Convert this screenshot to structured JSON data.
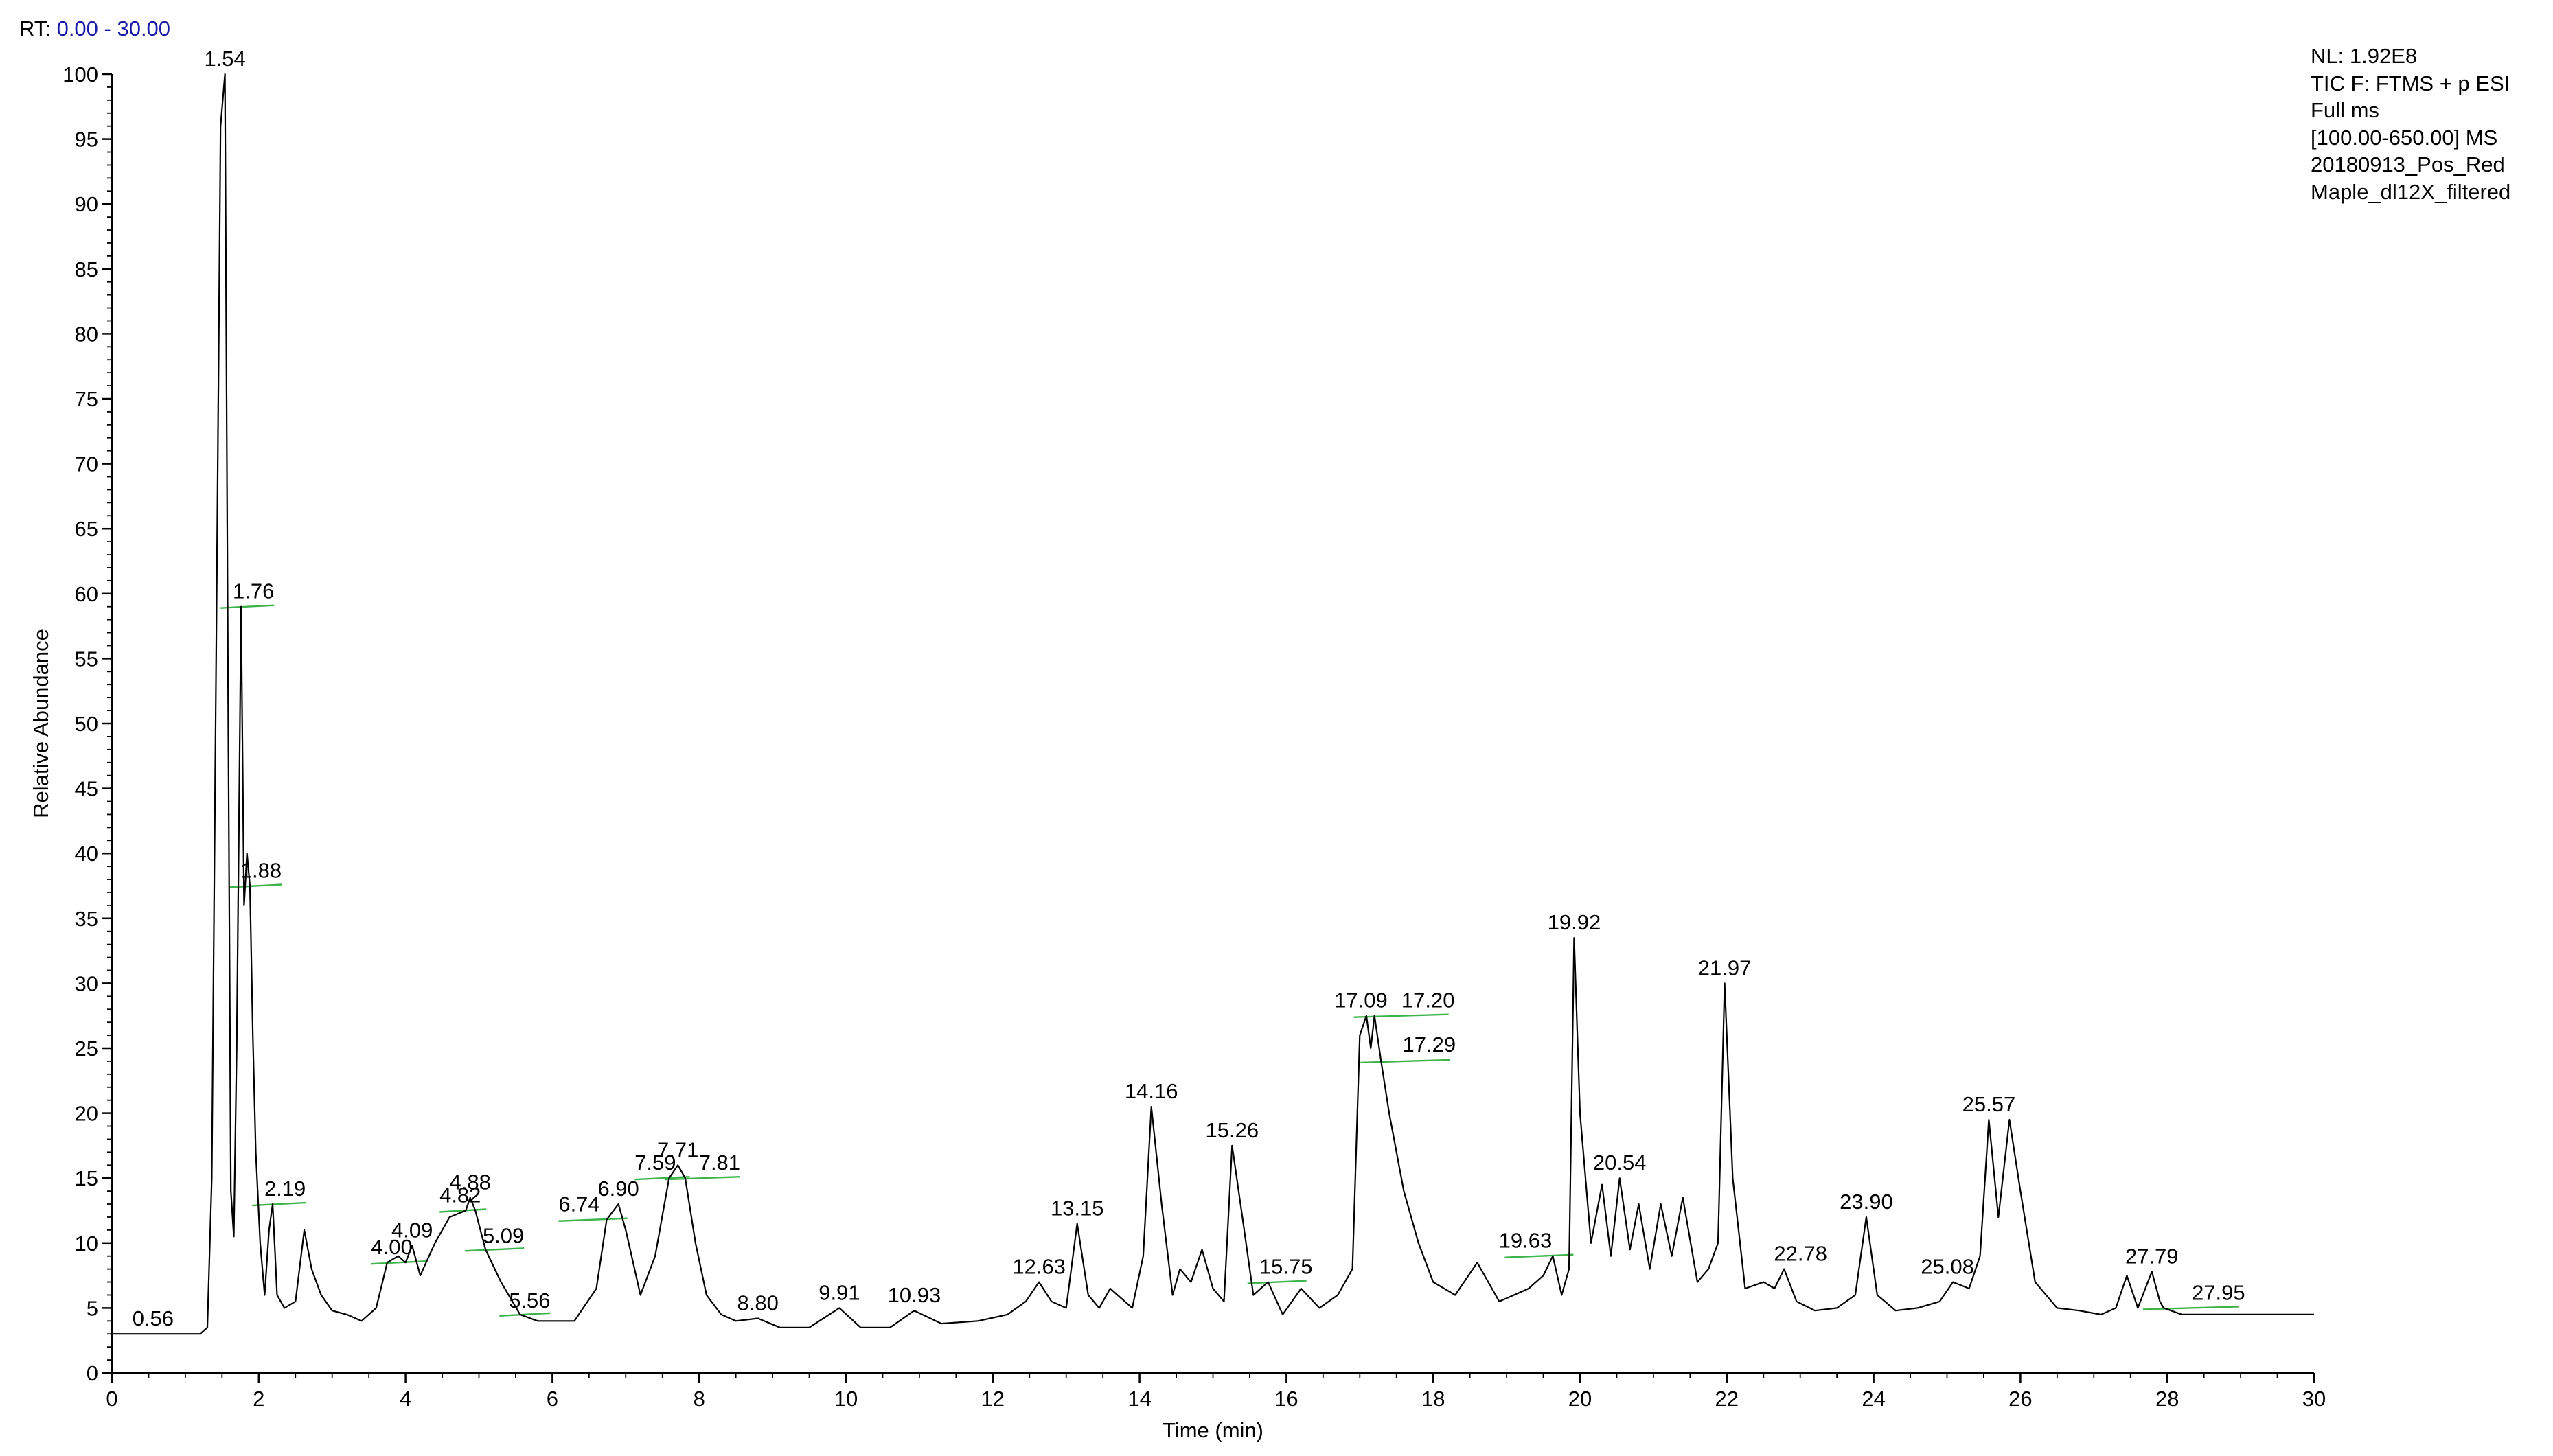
{
  "header": {
    "rt_label": "RT:",
    "rt_range": "0.00 - 30.00"
  },
  "info": {
    "lines": [
      "NL: 1.92E8",
      "TIC F: FTMS + p ESI",
      "Full ms",
      "[100.00-650.00]  MS",
      "20180913_Pos_Red",
      "Maple_dl12X_filtered"
    ]
  },
  "colors": {
    "trace": "#000000",
    "baseline_marker": "#3cb44b",
    "rt_range": "#1a1aa6"
  },
  "chart_data": {
    "type": "line",
    "title": "",
    "xlabel": "Time (min)",
    "ylabel": "Relative Abundance",
    "xlim": [
      0,
      30
    ],
    "ylim": [
      0,
      100
    ],
    "x_ticks": [
      0,
      2,
      4,
      6,
      8,
      10,
      12,
      14,
      16,
      18,
      20,
      22,
      24,
      26,
      28,
      30
    ],
    "y_ticks": [
      0,
      5,
      10,
      15,
      20,
      25,
      30,
      35,
      40,
      45,
      50,
      55,
      60,
      65,
      70,
      75,
      80,
      85,
      90,
      95,
      100
    ],
    "grid": false,
    "series": [
      {
        "x": [
          0,
          0.3,
          0.56,
          0.9,
          1.2,
          1.3,
          1.36,
          1.42,
          1.48,
          1.54,
          1.58,
          1.62,
          1.66,
          1.7,
          1.76,
          1.8,
          1.84,
          1.88,
          1.92,
          1.96,
          2.02,
          2.08,
          2.14,
          2.19,
          2.25,
          2.35,
          2.5,
          2.62,
          2.72,
          2.85,
          3.0,
          3.2,
          3.4,
          3.6,
          3.75,
          3.9,
          4.0,
          4.09,
          4.2,
          4.4,
          4.6,
          4.82,
          4.88,
          4.95,
          5.09,
          5.3,
          5.56,
          5.8,
          6.0,
          6.3,
          6.6,
          6.74,
          6.9,
          7.0,
          7.2,
          7.4,
          7.59,
          7.71,
          7.81,
          7.95,
          8.1,
          8.3,
          8.5,
          8.8,
          9.1,
          9.5,
          9.91,
          10.2,
          10.6,
          10.93,
          11.3,
          11.8,
          12.2,
          12.45,
          12.63,
          12.8,
          13.0,
          13.15,
          13.3,
          13.45,
          13.6,
          13.9,
          14.05,
          14.16,
          14.3,
          14.45,
          14.55,
          14.7,
          14.85,
          15.0,
          15.15,
          15.26,
          15.4,
          15.55,
          15.75,
          15.95,
          16.2,
          16.45,
          16.7,
          16.9,
          17.0,
          17.09,
          17.15,
          17.2,
          17.29,
          17.4,
          17.6,
          17.8,
          18.0,
          18.3,
          18.6,
          18.9,
          19.1,
          19.3,
          19.5,
          19.63,
          19.75,
          19.85,
          19.92,
          20.0,
          20.15,
          20.3,
          20.42,
          20.54,
          20.68,
          20.8,
          20.95,
          21.1,
          21.25,
          21.4,
          21.6,
          21.75,
          21.88,
          21.97,
          22.08,
          22.25,
          22.5,
          22.65,
          22.78,
          22.95,
          23.2,
          23.5,
          23.75,
          23.9,
          24.05,
          24.3,
          24.6,
          24.9,
          25.08,
          25.3,
          25.45,
          25.57,
          25.7,
          25.85,
          26.0,
          26.2,
          26.5,
          26.8,
          27.1,
          27.3,
          27.45,
          27.6,
          27.79,
          27.9,
          27.95,
          28.2,
          28.6,
          29.0,
          29.5,
          30.0
        ],
        "y": [
          3.0,
          3.0,
          3.0,
          3.0,
          3.0,
          3.5,
          15,
          55,
          96,
          100,
          55,
          14,
          10.5,
          25,
          59,
          36,
          40,
          37.5,
          26,
          17,
          10,
          6,
          11,
          13,
          6,
          5,
          5.5,
          11,
          8,
          6,
          4.8,
          4.5,
          4.0,
          5.0,
          8.5,
          9.0,
          8.5,
          9.8,
          7.5,
          10,
          12,
          12.5,
          13.5,
          12.5,
          9.5,
          7.0,
          4.5,
          4.0,
          4.0,
          4.0,
          6.5,
          11.8,
          13,
          11,
          6.0,
          9.0,
          15,
          16,
          15,
          10,
          6.0,
          4.5,
          4.0,
          4.2,
          3.5,
          3.5,
          5.0,
          3.5,
          3.5,
          4.8,
          3.8,
          4.0,
          4.5,
          5.5,
          7.0,
          5.5,
          5.0,
          11.5,
          6.0,
          5.0,
          6.5,
          5.0,
          9.0,
          20.5,
          13,
          6.0,
          8.0,
          7.0,
          9.5,
          6.5,
          5.5,
          17.5,
          12,
          6.0,
          7.0,
          4.5,
          6.5,
          5.0,
          6.0,
          8.0,
          26,
          27.5,
          25,
          27.5,
          24,
          20,
          14,
          10,
          7.0,
          6.0,
          8.5,
          5.5,
          6.0,
          6.5,
          7.5,
          9.0,
          6.0,
          8.0,
          33.5,
          20,
          10,
          14.5,
          9.0,
          15,
          9.5,
          13,
          8.0,
          13,
          9.0,
          13.5,
          7.0,
          8.0,
          10,
          30,
          15,
          6.5,
          7.0,
          6.5,
          8.0,
          5.5,
          4.8,
          5.0,
          6.0,
          12,
          6.0,
          4.8,
          5.0,
          5.5,
          7.0,
          6.5,
          9.0,
          19.5,
          12,
          19.5,
          14,
          7.0,
          5.0,
          4.8,
          4.5,
          5.0,
          7.5,
          5.0,
          7.8,
          5.5,
          5.0,
          4.5,
          4.5,
          4.5,
          4.5,
          4.5
        ]
      }
    ],
    "peak_labels": [
      {
        "x": 0.56,
        "y": 3.0,
        "text": "0.56"
      },
      {
        "x": 1.54,
        "y": 100,
        "text": "1.54"
      },
      {
        "x": 1.76,
        "y": 59,
        "text": "1.76"
      },
      {
        "x": 1.88,
        "y": 37.5,
        "text": "1.88"
      },
      {
        "x": 2.19,
        "y": 13,
        "text": "2.19"
      },
      {
        "x": 4.0,
        "y": 8.5,
        "text": "4.00"
      },
      {
        "x": 4.09,
        "y": 9.8,
        "text": "4.09"
      },
      {
        "x": 4.82,
        "y": 12.5,
        "text": "4.82"
      },
      {
        "x": 4.88,
        "y": 13.5,
        "text": "4.88"
      },
      {
        "x": 5.09,
        "y": 9.5,
        "text": "5.09"
      },
      {
        "x": 5.56,
        "y": 4.5,
        "text": "5.56"
      },
      {
        "x": 6.74,
        "y": 11.8,
        "text": "6.74"
      },
      {
        "x": 6.9,
        "y": 13,
        "text": "6.90"
      },
      {
        "x": 7.59,
        "y": 15,
        "text": "7.59"
      },
      {
        "x": 7.71,
        "y": 16,
        "text": "7.71"
      },
      {
        "x": 7.81,
        "y": 15,
        "text": "7.81"
      },
      {
        "x": 8.8,
        "y": 4.2,
        "text": "8.80"
      },
      {
        "x": 9.91,
        "y": 5.0,
        "text": "9.91"
      },
      {
        "x": 10.93,
        "y": 4.8,
        "text": "10.93"
      },
      {
        "x": 12.63,
        "y": 7.0,
        "text": "12.63"
      },
      {
        "x": 13.15,
        "y": 11.5,
        "text": "13.15"
      },
      {
        "x": 14.16,
        "y": 20.5,
        "text": "14.16"
      },
      {
        "x": 15.26,
        "y": 17.5,
        "text": "15.26"
      },
      {
        "x": 15.75,
        "y": 7.0,
        "text": "15.75"
      },
      {
        "x": 17.09,
        "y": 27.5,
        "text": "17.09"
      },
      {
        "x": 17.2,
        "y": 27.5,
        "text": "17.20"
      },
      {
        "x": 17.29,
        "y": 24,
        "text": "17.29"
      },
      {
        "x": 19.63,
        "y": 9.0,
        "text": "19.63"
      },
      {
        "x": 19.92,
        "y": 33.5,
        "text": "19.92"
      },
      {
        "x": 20.54,
        "y": 15,
        "text": "20.54"
      },
      {
        "x": 21.97,
        "y": 30,
        "text": "21.97"
      },
      {
        "x": 22.78,
        "y": 8.0,
        "text": "22.78"
      },
      {
        "x": 23.9,
        "y": 12,
        "text": "23.90"
      },
      {
        "x": 25.08,
        "y": 7.0,
        "text": "25.08"
      },
      {
        "x": 25.57,
        "y": 19.5,
        "text": "25.57"
      },
      {
        "x": 27.79,
        "y": 7.8,
        "text": "27.79"
      },
      {
        "x": 27.95,
        "y": 5.0,
        "text": "27.95"
      }
    ]
  }
}
